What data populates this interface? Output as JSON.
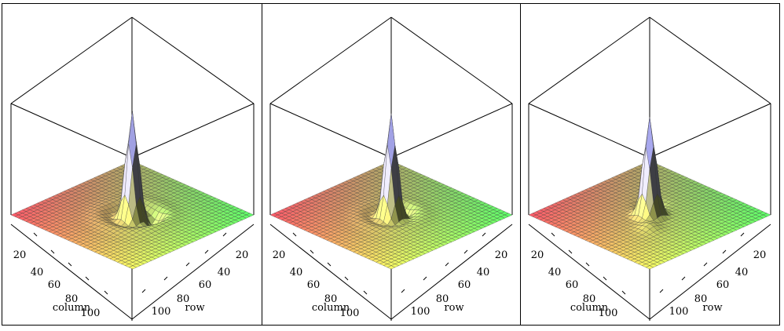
{
  "chart_data": [
    {
      "type": "surface3d",
      "xlabel": "column",
      "ylabel": "row",
      "column_ticks": [
        "20",
        "40",
        "60",
        "80",
        "100"
      ],
      "row_ticks": [
        "20",
        "40",
        "60",
        "80",
        "100"
      ],
      "grid": true,
      "peak": {
        "column": 64,
        "row": 64
      },
      "colors": {
        "left_corner": "#ff5a6a",
        "right_corner": "#5dff6a",
        "front_corner": "#fbff64",
        "peak": "#a8a8ee"
      }
    },
    {
      "type": "surface3d",
      "xlabel": "column",
      "ylabel": "row",
      "column_ticks": [
        "20",
        "40",
        "60",
        "80",
        "100"
      ],
      "row_ticks": [
        "20",
        "40",
        "60",
        "80",
        "100"
      ],
      "grid": true,
      "peak": {
        "column": 64,
        "row": 64
      },
      "colors": {
        "left_corner": "#ff5a6a",
        "right_corner": "#5dff6a",
        "front_corner": "#fbff64",
        "peak": "#a8a8ee"
      }
    },
    {
      "type": "surface3d",
      "xlabel": "column",
      "ylabel": "row",
      "column_ticks": [
        "20",
        "40",
        "60",
        "80",
        "100"
      ],
      "row_ticks": [
        "20",
        "40",
        "60",
        "80",
        "100"
      ],
      "grid": true,
      "peak": {
        "column": 64,
        "row": 64
      },
      "colors": {
        "left_corner": "#ff5a6a",
        "right_corner": "#5dff6a",
        "front_corner": "#fbff64",
        "peak": "#a8a8ee"
      }
    }
  ]
}
